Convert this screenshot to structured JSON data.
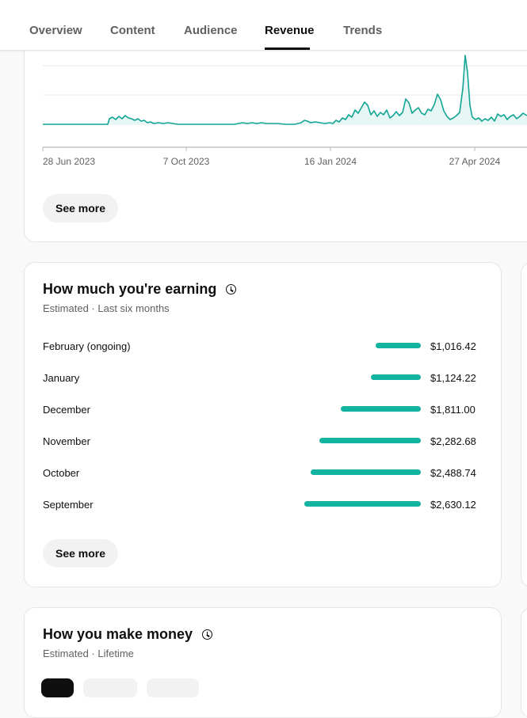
{
  "tabs": [
    {
      "label": "Overview",
      "active": false
    },
    {
      "label": "Content",
      "active": false
    },
    {
      "label": "Audience",
      "active": false
    },
    {
      "label": "Revenue",
      "active": true
    },
    {
      "label": "Trends",
      "active": false
    }
  ],
  "trend_card": {
    "see_more_label": "See more",
    "chart_data": {
      "type": "area",
      "x_tick_labels": [
        "28 Jun 2023",
        "7 Oct 2023",
        "16 Jan 2024",
        "27 Apr 2024"
      ],
      "series_color": "#12a594",
      "fill_color": "#e6f6f4",
      "grid": true,
      "note": "daily revenue trend, visible portion cropped at top"
    }
  },
  "earning_card": {
    "title": "How much you're earning",
    "subtitle": "Estimated · Last six months",
    "see_more_label": "See more",
    "chart_data": {
      "type": "bar",
      "orientation": "horizontal",
      "categories": [
        "February (ongoing)",
        "January",
        "December",
        "November",
        "October",
        "September"
      ],
      "values": [
        1016.42,
        1124.22,
        1811.0,
        2282.68,
        2488.74,
        2630.12
      ],
      "value_labels": [
        "$1,016.42",
        "$1,124.22",
        "$1,811.00",
        "$2,282.68",
        "$2,488.74",
        "$2,630.12"
      ],
      "bar_color": "#12b3a0"
    }
  },
  "money_card": {
    "title": "How you make money",
    "subtitle": "Estimated · Lifetime"
  }
}
